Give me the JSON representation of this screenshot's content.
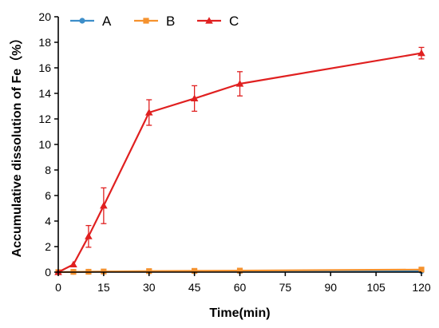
{
  "chart_data": {
    "type": "line",
    "title": "",
    "xlabel": "Time(min)",
    "ylabel": "Accumulative dissolution of Fe（%）",
    "xlim": [
      0,
      120
    ],
    "ylim": [
      0,
      20
    ],
    "xticks": [
      0,
      15,
      30,
      45,
      60,
      75,
      90,
      105,
      120
    ],
    "yticks": [
      0,
      2,
      4,
      6,
      8,
      10,
      12,
      14,
      16,
      18,
      20
    ],
    "grid": false,
    "legend_position": "top-left",
    "series": [
      {
        "name": "A",
        "color": "#3d8ec9",
        "marker": "circle",
        "x": [
          0,
          5,
          10,
          15,
          30,
          45,
          60,
          120
        ],
        "y": [
          0,
          0.02,
          0.03,
          0.04,
          0.05,
          0.06,
          0.07,
          0.08
        ],
        "err": [
          0,
          0,
          0,
          0,
          0,
          0,
          0,
          0
        ]
      },
      {
        "name": "B",
        "color": "#f5922e",
        "marker": "square",
        "x": [
          0,
          5,
          10,
          15,
          30,
          45,
          60,
          120
        ],
        "y": [
          0,
          0.02,
          0.03,
          0.05,
          0.08,
          0.1,
          0.12,
          0.2
        ],
        "err": [
          0,
          0,
          0,
          0,
          0,
          0,
          0,
          0.05
        ]
      },
      {
        "name": "C",
        "color": "#e02020",
        "marker": "triangle",
        "x": [
          0,
          5,
          10,
          15,
          30,
          45,
          60,
          120
        ],
        "y": [
          0,
          0.6,
          2.8,
          5.2,
          12.5,
          13.6,
          14.75,
          17.15
        ],
        "err": [
          0,
          0,
          0.85,
          1.4,
          1.0,
          1.0,
          0.95,
          0.45
        ]
      }
    ]
  }
}
